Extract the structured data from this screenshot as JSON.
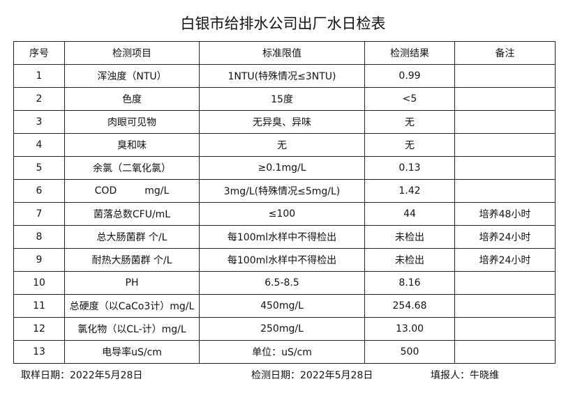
{
  "title": "白银市给排水公司出厂水日检表",
  "table": {
    "header": [
      "序号",
      "检测项目",
      "标准限值",
      "检测结果",
      "备注"
    ],
    "rows": [
      [
        "1",
        "浑浊度（NTU）",
        "1NTU(特殊情况≤3NTU)",
        "0.99"
      ],
      [
        "2",
        "色度",
        "15度",
        "<5"
      ],
      [
        "3",
        "肉眼可见物",
        "无异臭、异味",
        "无"
      ],
      [
        "4",
        "臭和味",
        "无",
        "无"
      ],
      [
        "5",
        "余氯（二氧化氯）",
        "≥0.1mg/L",
        "0.13"
      ],
      [
        "6",
        "COD         mg/L",
        "3mg/L(特殊情况≤5mg/L)",
        "1.42"
      ],
      [
        "7",
        "菌落总数CFU/mL",
        "≤100",
        "44",
        "培养48小时"
      ],
      [
        "8",
        "总大肠菌群 个/L",
        "每100ml水样中不得检出",
        "未检出",
        "培养24小时"
      ],
      [
        "9",
        "耐热大肠菌群 个/L",
        "每100ml水样中不得检出",
        "未检出",
        "培养24小时"
      ],
      [
        "10",
        "PH",
        "6.5-8.5",
        "8.16"
      ],
      [
        "11",
        "总硬度（以CaCo3计）mg/L",
        "450mg/L",
        "254.68"
      ],
      [
        "12",
        "氯化物（以CL-计）mg/L",
        "250mg/L",
        "13.00"
      ],
      [
        "13",
        "电导率uS/cm",
        "单位：uS/cm",
        "500"
      ]
    ]
  },
  "footer": [
    "取样日期：2022年5月28日",
    "检测日期：2022年5月28日",
    "填报人：牛晓维"
  ]
}
